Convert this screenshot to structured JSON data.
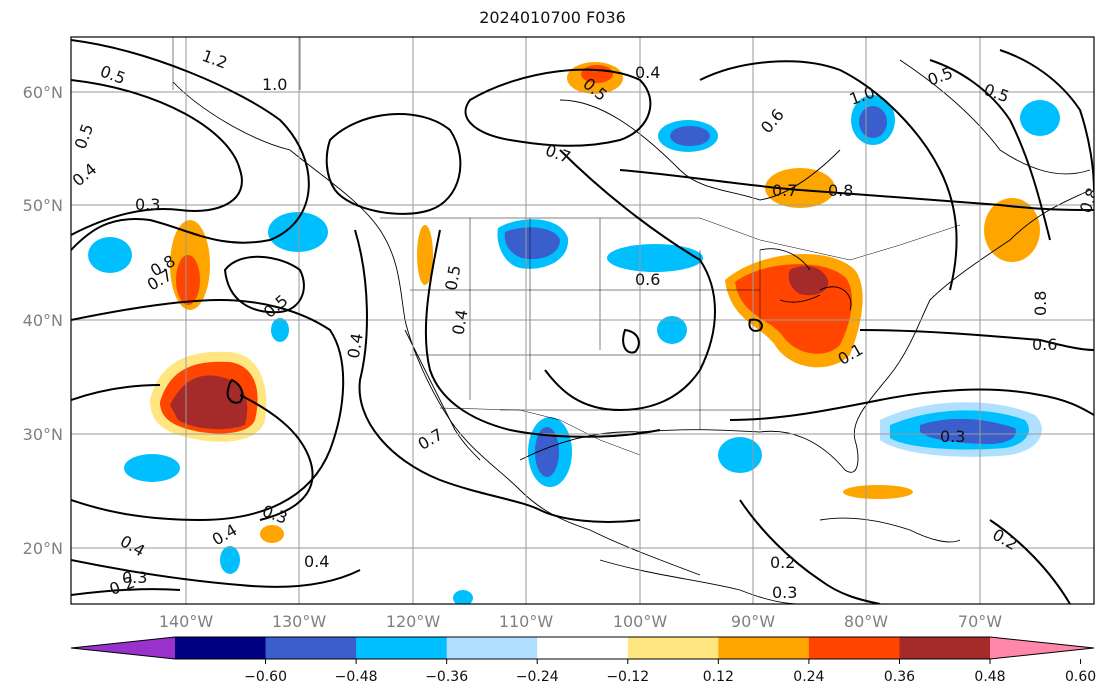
{
  "title": "2024010700 F036",
  "map": {
    "lat_labels": [
      "60°N",
      "50°N",
      "40°N",
      "30°N",
      "20°N"
    ],
    "lon_labels": [
      "140°W",
      "130°W",
      "120°W",
      "110°W",
      "100°W",
      "90°W",
      "80°W",
      "70°W"
    ],
    "contour_labels": [
      "1.2",
      "1.0",
      "0.5",
      "0.5",
      "0.4",
      "0.3",
      "0.8",
      "0.7",
      "0.5",
      "0.4",
      "0.5",
      "0.4",
      "0.7",
      "0.7",
      "0.5",
      "0.4",
      "0.6",
      "0.6",
      "1.0",
      "0.7",
      "0.8",
      "0.5",
      "0.5",
      "0.8",
      "0.8",
      "0.6",
      "0.3",
      "0.1",
      "0.4",
      "0.3",
      "0.4",
      "0.4",
      "0.3",
      "0.2",
      "0.2",
      "0.3",
      "0.2"
    ],
    "fill_colors": {
      "strong_positive": "#a52a2a",
      "positive_3": "#ff4500",
      "positive_2": "#ffa500",
      "positive_1": "#ffe680",
      "negative_1": "#b0e0ff",
      "negative_2": "#00bfff",
      "negative_3": "#3a5fcd"
    }
  },
  "colorbar": {
    "ticks": [
      "−0.60",
      "−0.48",
      "−0.36",
      "−0.24",
      "−0.12",
      "0.12",
      "0.24",
      "0.36",
      "0.48",
      "0.60"
    ],
    "colors": [
      "#9932cc",
      "#000080",
      "#3a5fcd",
      "#00bfff",
      "#b0e0ff",
      "#ffffff",
      "#ffe680",
      "#ffa500",
      "#ff4500",
      "#a52a2a",
      "#ff88aa"
    ]
  }
}
